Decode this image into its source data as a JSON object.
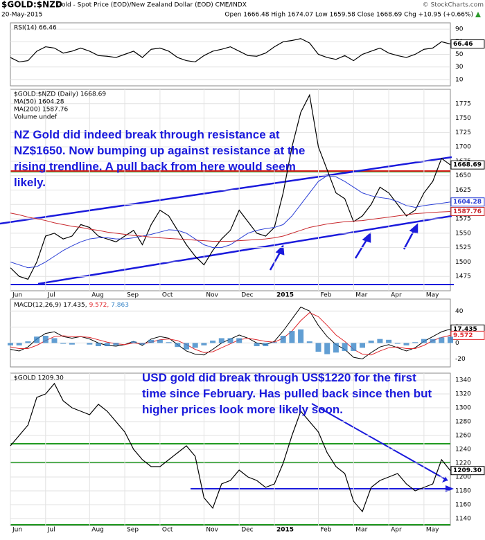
{
  "header": {
    "symbol": "$GOLD:$NZD",
    "description": "Gold - Spot Price (EOD)/New Zealand Dollar (EOD) CME/INDX",
    "brand": "© StockCharts.com",
    "date": "20-May-2015",
    "quote": "Open 1666.48 High 1674.07 Low 1659.58 Close 1668.69 Chg +10.95 (+0.66%)"
  },
  "chart_data": [
    {
      "type": "line",
      "ylim": [
        0,
        100
      ],
      "yticks": [
        10,
        30,
        50,
        70,
        90
      ],
      "series": [
        {
          "name": "RSI(14) 66.46",
          "color": "#000000",
          "tag": "66.46",
          "values": [
            45,
            38,
            40,
            55,
            62,
            60,
            52,
            55,
            60,
            55,
            48,
            47,
            45,
            50,
            55,
            45,
            58,
            60,
            55,
            45,
            40,
            38,
            48,
            55,
            58,
            62,
            55,
            48,
            47,
            52,
            62,
            70,
            72,
            75,
            68,
            50,
            45,
            42,
            48,
            40,
            50,
            55,
            60,
            52,
            48,
            45,
            50,
            58,
            60,
            70,
            66.46
          ]
        }
      ]
    },
    {
      "type": "line",
      "ylim": [
        1450,
        1800
      ],
      "yticks": [
        1475,
        1500,
        1525,
        1550,
        1575,
        1600,
        1625,
        1650,
        1675,
        1700,
        1725,
        1750,
        1775
      ],
      "categories": [
        "Jun",
        null,
        null,
        null,
        "Jul",
        null,
        null,
        null,
        null,
        "Aug",
        null,
        null,
        null,
        "Sep",
        null,
        null,
        null,
        "Oct",
        null,
        null,
        null,
        null,
        "Nov",
        null,
        null,
        null,
        "Dec",
        null,
        null,
        null,
        "2015",
        null,
        null,
        null,
        null,
        "Feb",
        null,
        null,
        null,
        "Mar",
        null,
        null,
        null,
        "Apr",
        null,
        null,
        null,
        "May",
        null,
        null,
        null
      ],
      "volume_legend": "Volume undef",
      "annotation": "NZ Gold did indeed break through resistance at NZ$1650. Now bumping up against resistance at the rising trendline. A pull back from here would seem likely.",
      "series": [
        {
          "name": "$GOLD:$NZD (Daily) 1668.69",
          "color": "#000000",
          "tag": "1668.69",
          "values": [
            1490,
            1475,
            1470,
            1500,
            1545,
            1550,
            1540,
            1545,
            1565,
            1560,
            1545,
            1540,
            1535,
            1545,
            1555,
            1530,
            1565,
            1590,
            1580,
            1555,
            1530,
            1510,
            1495,
            1520,
            1540,
            1555,
            1590,
            1570,
            1550,
            1545,
            1560,
            1620,
            1700,
            1760,
            1790,
            1700,
            1660,
            1620,
            1610,
            1570,
            1580,
            1600,
            1630,
            1620,
            1600,
            1580,
            1590,
            1620,
            1640,
            1680,
            1668.69
          ]
        },
        {
          "name": "MA(50) 1604.28",
          "color": "#2b3fd6",
          "tag": "1604.28",
          "values": [
            1500,
            1495,
            1490,
            1492,
            1500,
            1510,
            1520,
            1528,
            1535,
            1540,
            1542,
            1542,
            1540,
            1540,
            1542,
            1545,
            1548,
            1552,
            1556,
            1555,
            1550,
            1540,
            1530,
            1525,
            1525,
            1530,
            1540,
            1550,
            1555,
            1558,
            1560,
            1565,
            1580,
            1600,
            1620,
            1640,
            1650,
            1648,
            1640,
            1630,
            1620,
            1615,
            1612,
            1610,
            1605,
            1598,
            1595,
            1598,
            1600,
            1602,
            1604.28
          ]
        },
        {
          "name": "MA(200) 1587.76",
          "color": "#c8282d",
          "tag": "1587.76",
          "values": [
            1585,
            1582,
            1578,
            1575,
            1572,
            1568,
            1565,
            1562,
            1560,
            1557,
            1555,
            1552,
            1550,
            1548,
            1546,
            1545,
            1543,
            1542,
            1541,
            1540,
            1539,
            1538,
            1537,
            1536,
            1536,
            1536,
            1537,
            1538,
            1539,
            1540,
            1542,
            1545,
            1550,
            1555,
            1560,
            1563,
            1566,
            1568,
            1570,
            1571,
            1572,
            1574,
            1576,
            1578,
            1580,
            1582,
            1584,
            1585,
            1586,
            1587,
            1587.76
          ]
        }
      ]
    },
    {
      "type": "line",
      "ylim": [
        -30,
        55
      ],
      "yticks": [
        -20,
        0,
        20,
        40
      ],
      "series": [
        {
          "name": "MACD(12,26,9) 17.435,",
          "color": "#000000",
          "tag": "17.435",
          "values": [
            -8,
            -10,
            -5,
            5,
            12,
            14,
            8,
            6,
            8,
            5,
            0,
            -3,
            -4,
            -2,
            2,
            -3,
            5,
            8,
            6,
            -2,
            -10,
            -14,
            -15,
            -8,
            0,
            5,
            10,
            6,
            0,
            -2,
            2,
            15,
            30,
            45,
            40,
            22,
            8,
            -2,
            -8,
            -18,
            -20,
            -12,
            -5,
            -2,
            -6,
            -10,
            -6,
            2,
            8,
            14,
            17.435
          ]
        },
        {
          "name": "9.572,",
          "color": "#e0282d",
          "tag": "9.572",
          "values": [
            -5,
            -7,
            -7,
            -3,
            3,
            8,
            9,
            8,
            8,
            7,
            4,
            1,
            -1,
            -2,
            0,
            -1,
            1,
            4,
            5,
            3,
            -2,
            -8,
            -12,
            -11,
            -6,
            -1,
            4,
            6,
            4,
            2,
            1,
            6,
            15,
            28,
            38,
            33,
            22,
            10,
            2,
            -8,
            -14,
            -15,
            -10,
            -6,
            -5,
            -7,
            -7,
            -3,
            3,
            7,
            9.572
          ]
        },
        {
          "name": "7.863",
          "color": "#3a86c8",
          "style": "histogram",
          "values": [
            -3,
            -3,
            2,
            8,
            9,
            6,
            -1,
            -2,
            0,
            -2,
            -4,
            -4,
            -3,
            0,
            2,
            -2,
            4,
            4,
            1,
            -5,
            -8,
            -6,
            -3,
            3,
            6,
            6,
            6,
            0,
            -4,
            -4,
            1,
            9,
            15,
            17,
            2,
            -11,
            -14,
            -12,
            -10,
            -10,
            -6,
            3,
            5,
            4,
            -1,
            -3,
            1,
            5,
            5,
            7,
            7.863
          ]
        }
      ]
    },
    {
      "type": "line",
      "ylim": [
        1130,
        1350
      ],
      "yticks": [
        1140,
        1160,
        1180,
        1200,
        1220,
        1240,
        1260,
        1280,
        1300,
        1320,
        1340
      ],
      "categories": [
        "Jun",
        null,
        null,
        null,
        "Jul",
        null,
        null,
        null,
        null,
        "Aug",
        null,
        null,
        null,
        "Sep",
        null,
        null,
        null,
        "Oct",
        null,
        null,
        null,
        null,
        "Nov",
        null,
        null,
        null,
        "Dec",
        null,
        null,
        null,
        "2015",
        null,
        null,
        null,
        null,
        "Feb",
        null,
        null,
        null,
        "Mar",
        null,
        null,
        null,
        "Apr",
        null,
        null,
        null,
        "May",
        null,
        null,
        null
      ],
      "annotation": "USD gold did break through US$1220 for the first time since February. Has pulled back since then but higher prices look more likely soon.",
      "series": [
        {
          "name": "$GOLD 1209.30",
          "color": "#000000",
          "tag": "1209.30",
          "values": [
            1245,
            1260,
            1275,
            1315,
            1320,
            1335,
            1310,
            1300,
            1295,
            1290,
            1305,
            1295,
            1280,
            1265,
            1240,
            1225,
            1215,
            1215,
            1225,
            1235,
            1245,
            1230,
            1170,
            1155,
            1190,
            1195,
            1210,
            1200,
            1195,
            1185,
            1190,
            1220,
            1260,
            1295,
            1280,
            1265,
            1235,
            1215,
            1205,
            1165,
            1150,
            1185,
            1195,
            1200,
            1205,
            1190,
            1180,
            1185,
            1190,
            1225,
            1209.3
          ]
        }
      ]
    }
  ]
}
